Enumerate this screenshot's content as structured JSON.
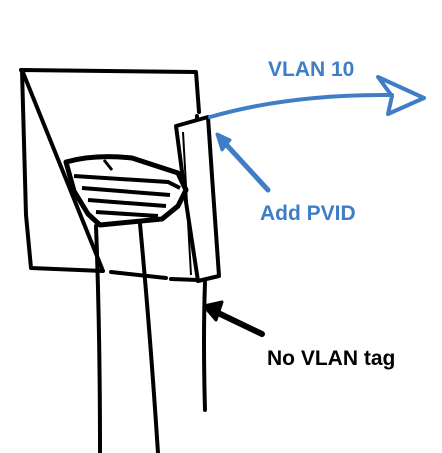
{
  "labels": {
    "vlan": "VLAN 10",
    "add_pvid": "Add PVID",
    "no_vlan_tag": "No VLAN tag"
  },
  "colors": {
    "ink": "#000000",
    "accent": "#3f7ec6",
    "background": "#ffffff"
  }
}
